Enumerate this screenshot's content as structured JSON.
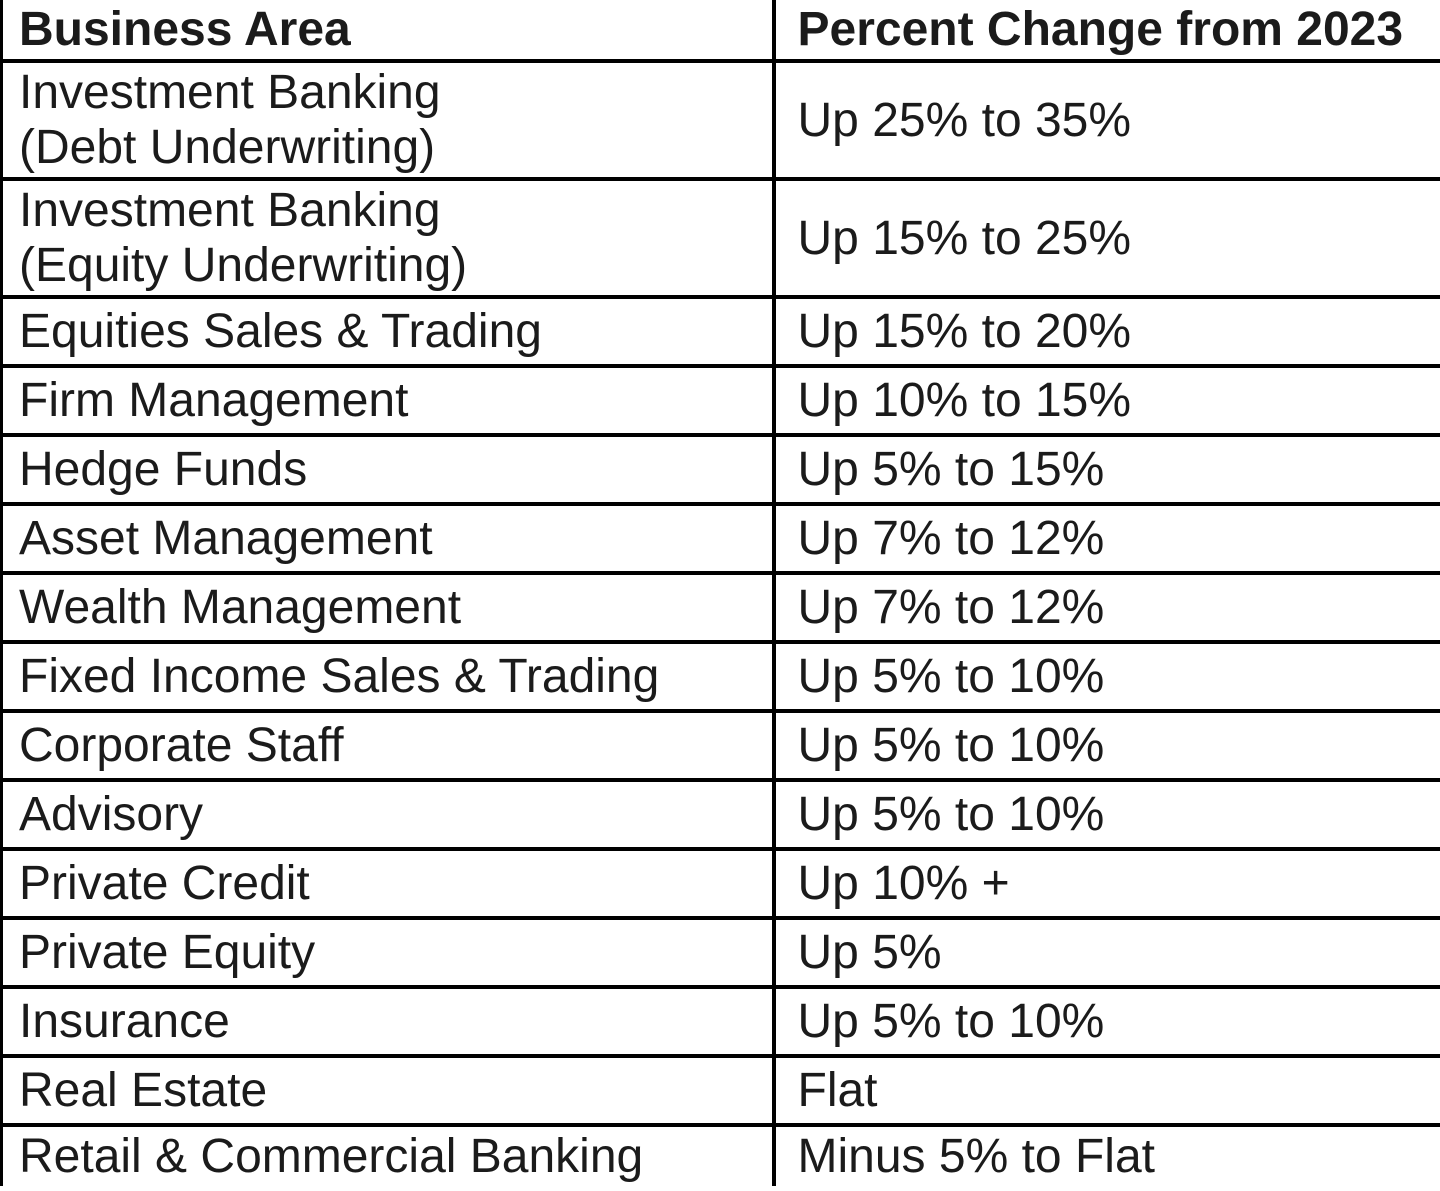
{
  "chart_data": {
    "type": "table",
    "columns": [
      "Business Area",
      "Percent Change from 2023"
    ],
    "rows": [
      [
        "Investment Banking\n(Debt Underwriting)",
        "Up 25% to 35%"
      ],
      [
        "Investment Banking\n(Equity Underwriting)",
        "Up 15% to 25%"
      ],
      [
        "Equities Sales & Trading",
        "Up 15% to 20%"
      ],
      [
        "Firm Management",
        "Up 10% to 15%"
      ],
      [
        "Hedge Funds",
        "Up 5% to 15%"
      ],
      [
        "Asset Management",
        "Up 7% to 12%"
      ],
      [
        "Wealth Management",
        "Up 7% to 12%"
      ],
      [
        "Fixed Income Sales & Trading",
        "Up 5% to 10%"
      ],
      [
        "Corporate Staff",
        "Up 5% to 10%"
      ],
      [
        "Advisory",
        "Up 5% to 10%"
      ],
      [
        "Private Credit",
        "Up 10% +"
      ],
      [
        "Private Equity",
        "Up 5%"
      ],
      [
        "Insurance",
        "Up 5% to 10%"
      ],
      [
        "Real Estate",
        "Flat"
      ],
      [
        "Retail & Commercial Banking",
        "Minus 5% to Flat"
      ]
    ],
    "layout": {
      "grid": "on",
      "header_bold": true
    },
    "colors": {
      "border": "#000000",
      "text": "#1b1b1b",
      "background": "#ffffff"
    }
  }
}
